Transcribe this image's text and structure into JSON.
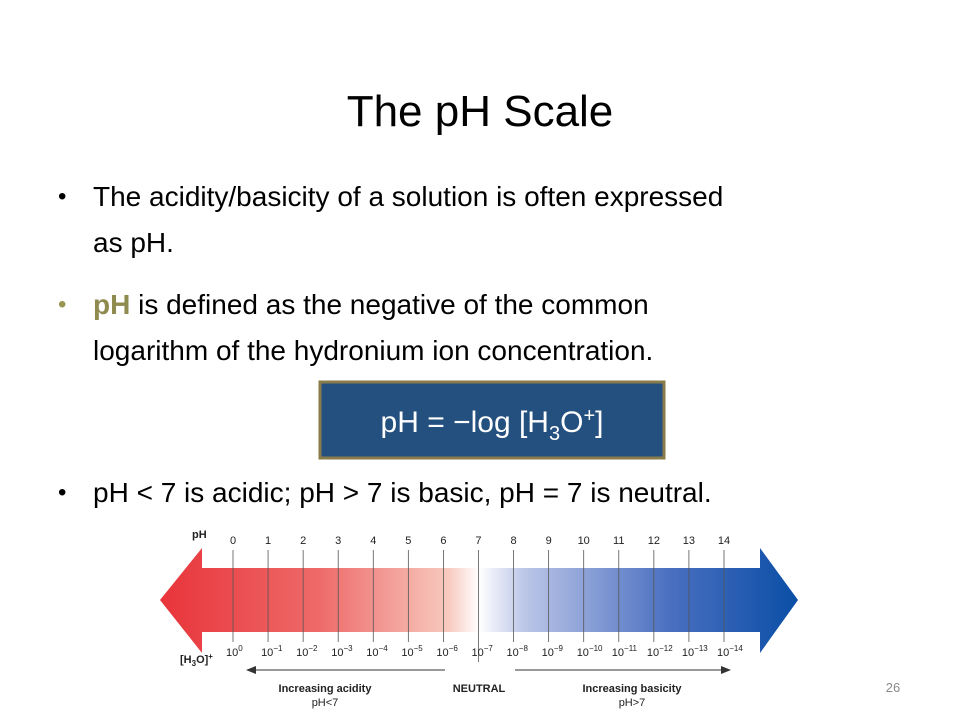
{
  "slide": {
    "title": "The pH Scale",
    "bullets": [
      {
        "lines": [
          "The acidity/basicity of a solution is often expressed",
          "as pH."
        ]
      },
      {
        "highlight": "pH",
        "lines": [
          " is defined as the negative of the common",
          "logarithm of the hydronium ion concentration."
        ]
      },
      {
        "lines": [
          "pH < 7 is acidic; pH > 7 is basic, pH = 7 is neutral."
        ]
      }
    ],
    "formula": {
      "main": "pH = −log [H",
      "sub": "3",
      "mid": "O",
      "sup": "+",
      "end": "]"
    },
    "diagram": {
      "ph_label": "pH",
      "conc_label": {
        "main": "[H",
        "sub": "3",
        "mid": "O]",
        "sup": "+"
      },
      "ph_values": [
        0,
        1,
        2,
        3,
        4,
        5,
        6,
        7,
        8,
        9,
        10,
        11,
        12,
        13,
        14
      ],
      "conc_base": "10",
      "conc_exponents": [
        "0",
        "−1",
        "−2",
        "−3",
        "−4",
        "−5",
        "−6",
        "−7",
        "−8",
        "−9",
        "−10",
        "−11",
        "−12",
        "−13",
        "−14"
      ],
      "acid_label": "Increasing acidity",
      "acid_sub": "pH<7",
      "neutral_label": "NEUTRAL",
      "base_label": "Increasing basicity",
      "base_sub": "pH>7"
    },
    "page_number": "26"
  }
}
